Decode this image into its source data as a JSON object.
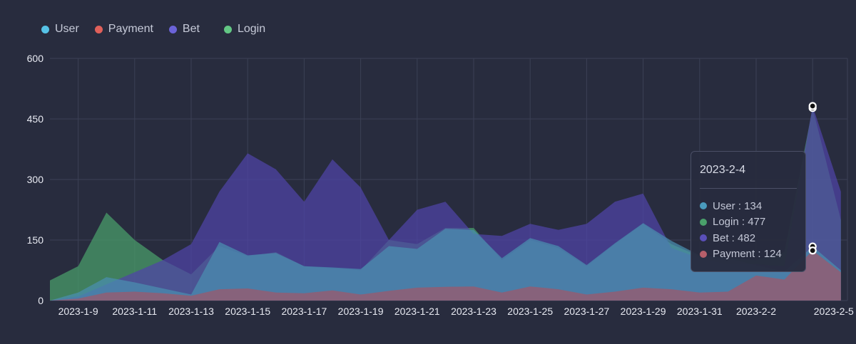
{
  "legend": [
    {
      "key": "user",
      "label": "User",
      "color": "#56c2e6"
    },
    {
      "key": "payment",
      "label": "Payment",
      "color": "#e0605a"
    },
    {
      "key": "bet",
      "label": "Bet",
      "color": "#6b63d8"
    },
    {
      "key": "login",
      "label": "Login",
      "color": "#63c784"
    }
  ],
  "tooltip": {
    "date": "2023-2-4",
    "rows": [
      {
        "label": "User : 134",
        "color": "#4a9bbd"
      },
      {
        "label": "Login : 477",
        "color": "#4aa06b"
      },
      {
        "label": "Bet : 482",
        "color": "#5a4fb8"
      },
      {
        "label": "Payment : 124",
        "color": "#b65f6a"
      }
    ]
  },
  "chart_data": {
    "type": "area",
    "x": [
      "2023-1-8",
      "2023-1-9",
      "2023-1-10",
      "2023-1-11",
      "2023-1-12",
      "2023-1-13",
      "2023-1-14",
      "2023-1-15",
      "2023-1-16",
      "2023-1-17",
      "2023-1-18",
      "2023-1-19",
      "2023-1-20",
      "2023-1-21",
      "2023-1-22",
      "2023-1-23",
      "2023-1-24",
      "2023-1-25",
      "2023-1-26",
      "2023-1-27",
      "2023-1-28",
      "2023-1-29",
      "2023-1-30",
      "2023-1-31",
      "2023-2-1",
      "2023-2-2",
      "2023-2-3",
      "2023-2-4",
      "2023-2-5"
    ],
    "x_tick_labels": [
      "2023-1-9",
      "2023-1-11",
      "2023-1-13",
      "2023-1-15",
      "2023-1-17",
      "2023-1-19",
      "2023-1-21",
      "2023-1-23",
      "2023-1-25",
      "2023-1-27",
      "2023-1-29",
      "2023-1-31",
      "2023-2-2",
      "2023-2-5"
    ],
    "y_ticks": [
      0,
      150,
      300,
      450,
      600
    ],
    "ylim": [
      0,
      600
    ],
    "grid": true,
    "legend_position": "top-left",
    "series": [
      {
        "name": "Login",
        "color": "#4aa06b",
        "values": [
          50,
          85,
          218,
          150,
          100,
          65,
          135,
          110,
          120,
          85,
          80,
          75,
          150,
          140,
          180,
          180,
          100,
          150,
          130,
          85,
          140,
          190,
          140,
          110,
          105,
          100,
          120,
          477,
          200
        ]
      },
      {
        "name": "Bet",
        "color": "#4f44a8",
        "values": [
          0,
          10,
          40,
          70,
          100,
          140,
          270,
          365,
          325,
          245,
          350,
          280,
          150,
          225,
          245,
          165,
          160,
          190,
          175,
          190,
          245,
          265,
          130,
          105,
          90,
          90,
          85,
          482,
          270
        ]
      },
      {
        "name": "User",
        "color": "#4a8fb0",
        "values": [
          0,
          20,
          58,
          45,
          30,
          15,
          145,
          112,
          118,
          85,
          82,
          78,
          135,
          128,
          178,
          175,
          105,
          155,
          135,
          88,
          142,
          192,
          148,
          112,
          105,
          88,
          72,
          134,
          75
        ]
      },
      {
        "name": "Payment",
        "color": "#a0586a",
        "values": [
          0,
          5,
          20,
          22,
          18,
          12,
          28,
          30,
          20,
          18,
          25,
          15,
          24,
          32,
          34,
          35,
          20,
          35,
          28,
          15,
          22,
          32,
          28,
          20,
          22,
          62,
          52,
          124,
          70
        ]
      }
    ]
  }
}
